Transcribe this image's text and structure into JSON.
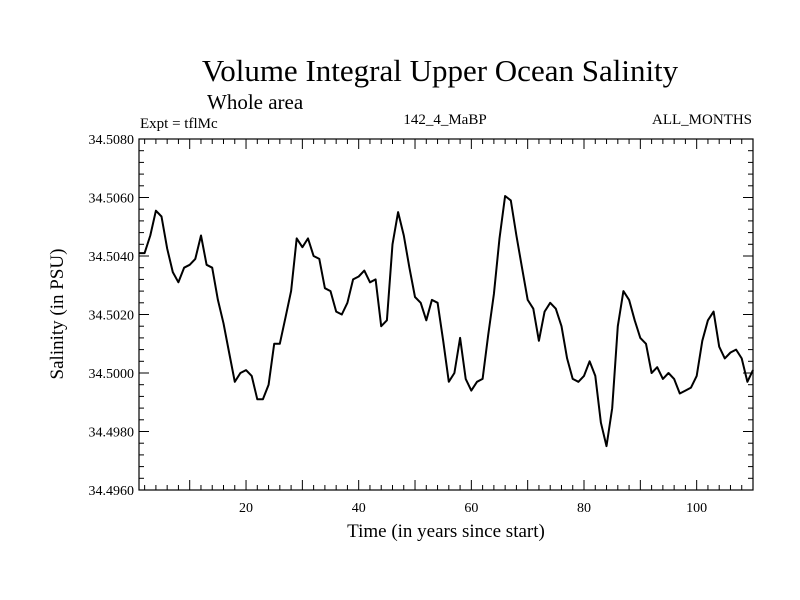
{
  "chart_data": {
    "type": "line",
    "title": "Volume Integral Upper Ocean Salinity",
    "subtitle": "Whole area",
    "expt_label": "Expt = tflMc",
    "run_label": "142_4_MaBP",
    "months_label": "ALL_MONTHS",
    "xlabel": "Time (in years since start)",
    "ylabel": "Salinity (in PSU)",
    "xlim": [
      1,
      110
    ],
    "ylim": [
      34.496,
      34.508
    ],
    "x_ticks": [
      20,
      40,
      60,
      80,
      100
    ],
    "x_tick_labels": [
      "20",
      "40",
      "60",
      "80",
      "100"
    ],
    "y_ticks": [
      34.496,
      34.498,
      34.5,
      34.502,
      34.504,
      34.506,
      34.508
    ],
    "y_tick_labels": [
      "34.4960",
      "34.4980",
      "34.5000",
      "34.5020",
      "34.5040",
      "34.5060",
      "34.5080"
    ],
    "series": [
      {
        "name": "salinity",
        "x": [
          1,
          2,
          3,
          4,
          5,
          6,
          7,
          8,
          9,
          10,
          11,
          12,
          13,
          14,
          15,
          16,
          17,
          18,
          19,
          20,
          21,
          22,
          23,
          24,
          25,
          26,
          27,
          28,
          29,
          30,
          31,
          32,
          33,
          34,
          35,
          36,
          37,
          38,
          39,
          40,
          41,
          42,
          43,
          44,
          45,
          46,
          47,
          48,
          49,
          50,
          51,
          52,
          53,
          54,
          55,
          56,
          57,
          58,
          59,
          60,
          61,
          62,
          63,
          64,
          65,
          66,
          67,
          68,
          69,
          70,
          71,
          72,
          73,
          74,
          75,
          76,
          77,
          78,
          79,
          80,
          81,
          82,
          83,
          84,
          85,
          86,
          87,
          88,
          89,
          90,
          91,
          92,
          93,
          94,
          95,
          96,
          97,
          98,
          99,
          100,
          101,
          102,
          103,
          104,
          105,
          106,
          107,
          108,
          109,
          110
        ],
        "values": [
          34.5041,
          34.5041,
          34.5047,
          34.50555,
          34.50535,
          34.50425,
          34.50345,
          34.5031,
          34.5036,
          34.5037,
          34.5039,
          34.5047,
          34.5037,
          34.5036,
          34.5025,
          34.5017,
          34.5007,
          34.4997,
          34.5,
          34.5001,
          34.4999,
          34.4991,
          34.4991,
          34.4996,
          34.501,
          34.501,
          34.5019,
          34.5028,
          34.5046,
          34.5043,
          34.5046,
          34.504,
          34.5039,
          34.5029,
          34.5028,
          34.5021,
          34.502,
          34.5024,
          34.5032,
          34.5033,
          34.5035,
          34.5031,
          34.5032,
          34.5016,
          34.5018,
          34.5044,
          34.5055,
          34.5047,
          34.5036,
          34.5026,
          34.5024,
          34.5018,
          34.5025,
          34.5024,
          34.5011,
          34.4997,
          34.5,
          34.5012,
          34.4998,
          34.4994,
          34.4997,
          34.4998,
          34.5013,
          34.5027,
          34.5046,
          34.50605,
          34.5059,
          34.5047,
          34.5036,
          34.5025,
          34.5022,
          34.5011,
          34.5021,
          34.5024,
          34.5022,
          34.5016,
          34.5005,
          34.4998,
          34.4997,
          34.4999,
          34.5004,
          34.4999,
          34.4983,
          34.4975,
          34.4988,
          34.5016,
          34.5028,
          34.5025,
          34.5018,
          34.5012,
          34.501,
          34.5,
          34.5002,
          34.4998,
          34.5,
          34.4998,
          34.4993,
          34.4994,
          34.4995,
          34.4999,
          34.5011,
          34.5018,
          34.5021,
          34.5009,
          34.5005,
          34.5007,
          34.5008,
          34.5005,
          34.4997,
          34.5001
        ]
      }
    ]
  }
}
